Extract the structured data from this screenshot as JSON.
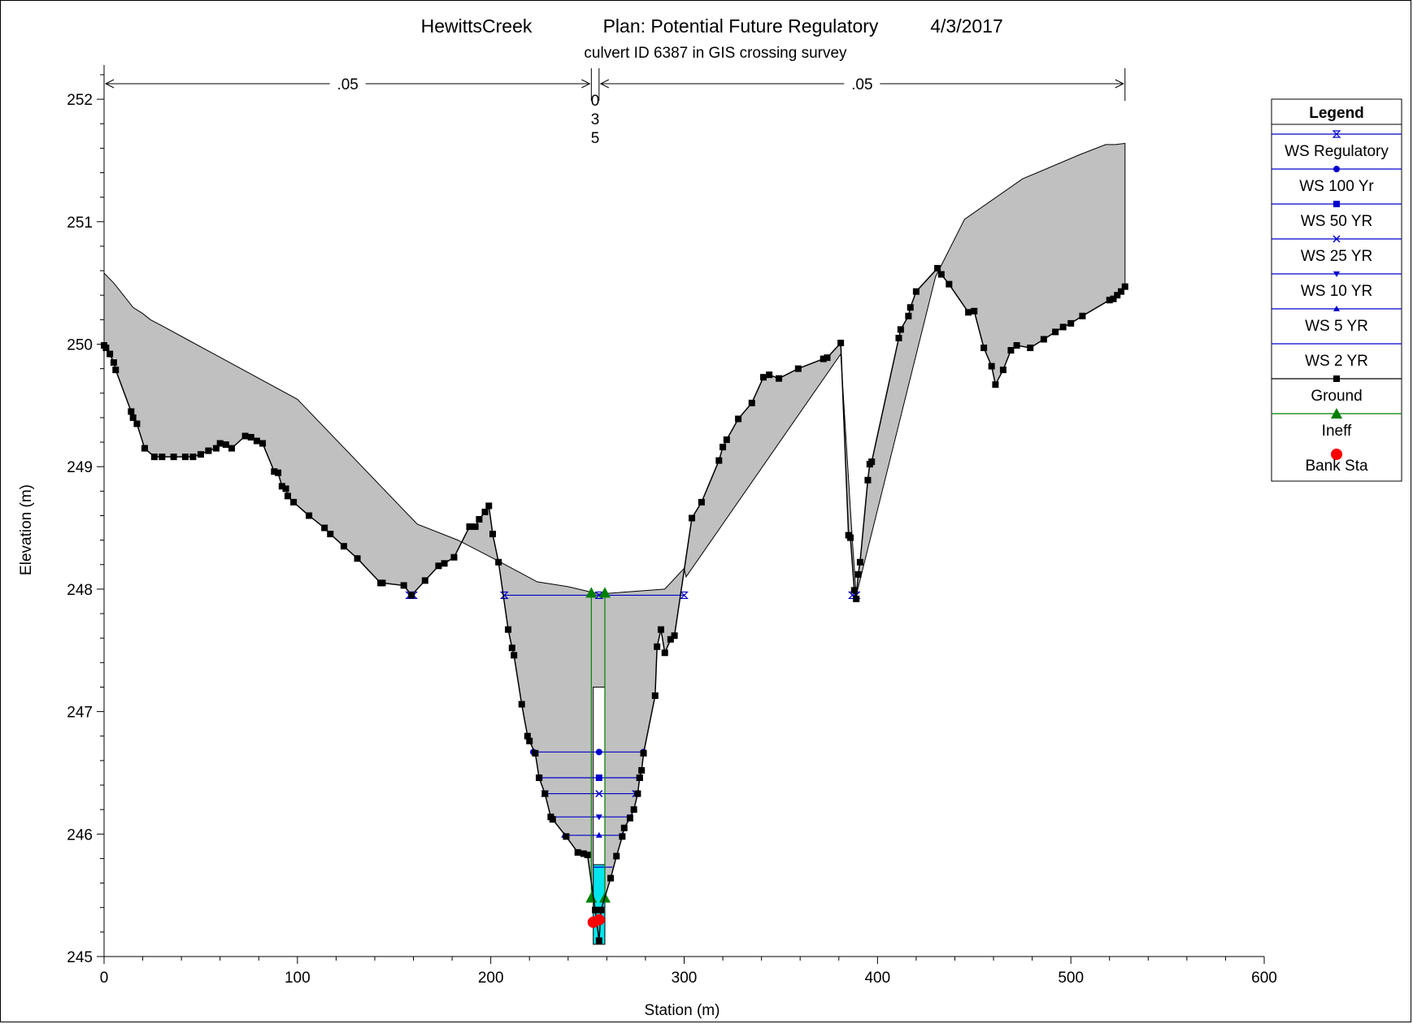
{
  "chart_data": {
    "type": "line",
    "title": {
      "project": "HewittsCreek",
      "plan": "Plan: Potential Future Regulatory",
      "date": "4/3/2017"
    },
    "subtitle": "culvert ID 6387 in GIS crossing survey",
    "xlabel": "Station (m)",
    "ylabel": "Elevation (m)",
    "xlim": [
      0,
      600
    ],
    "ylim": [
      245,
      252.3
    ],
    "xticks": [
      "0",
      "100",
      "200",
      "300",
      "400",
      "500",
      "600"
    ],
    "yticks": [
      "245",
      "246",
      "247",
      "248",
      "249",
      "250",
      "251",
      "252"
    ],
    "mannings": [
      {
        "value": ".05",
        "from": 0,
        "to": 252
      },
      {
        "value": "0\n3\n5",
        "from": 252,
        "to": 256
      },
      {
        "value": ".05",
        "from": 256,
        "to": 528
      }
    ],
    "legend_title": "Legend",
    "legend_position": "right",
    "series": [
      {
        "name": "WS Regulatory",
        "marker": "hourglass",
        "color": "#0000cc",
        "segments": [
          [
            [
              207,
              247.95
            ],
            [
              300,
              247.95
            ]
          ],
          [
            [
              158,
              247.95
            ],
            [
              160,
              247.95
            ]
          ],
          [
            [
              387,
              247.95
            ],
            [
              389,
              247.95
            ]
          ]
        ]
      },
      {
        "name": "WS 100 Yr",
        "marker": "circle",
        "color": "#0000cc",
        "segments": [
          [
            [
              222,
              246.67
            ],
            [
              279,
              246.67
            ]
          ]
        ]
      },
      {
        "name": "WS 50 YR",
        "marker": "square",
        "color": "#0000cc",
        "segments": [
          [
            [
              225,
              246.46
            ],
            [
              277,
              246.46
            ]
          ]
        ]
      },
      {
        "name": "WS 25 YR",
        "marker": "x",
        "color": "#0000cc",
        "segments": [
          [
            [
              228,
              246.33
            ],
            [
              275,
              246.33
            ]
          ]
        ]
      },
      {
        "name": "WS 10 YR",
        "marker": "triangle-down",
        "color": "#0000cc",
        "segments": [
          [
            [
              231,
              246.14
            ],
            [
              272,
              246.14
            ]
          ]
        ]
      },
      {
        "name": "WS 5 YR",
        "marker": "triangle-up",
        "color": "#0000cc",
        "segments": [
          [
            [
              238,
              245.99
            ],
            [
              268,
              245.99
            ]
          ]
        ]
      },
      {
        "name": "WS 2 YR",
        "marker": "none",
        "color": "#0000cc",
        "segments": [
          [
            [
              253,
              245.73
            ],
            [
              263,
              245.73
            ]
          ]
        ]
      },
      {
        "name": "Ground",
        "marker": "square",
        "color": "#000000",
        "points": [
          [
            0,
            249.99
          ],
          [
            1,
            249.97
          ],
          [
            3,
            249.92
          ],
          [
            5,
            249.85
          ],
          [
            6,
            249.79
          ],
          [
            14,
            249.45
          ],
          [
            15,
            249.4
          ],
          [
            17,
            249.35
          ],
          [
            21,
            249.15
          ],
          [
            26,
            249.08
          ],
          [
            30,
            249.08
          ],
          [
            36,
            249.08
          ],
          [
            42,
            249.08
          ],
          [
            46,
            249.08
          ],
          [
            50,
            249.1
          ],
          [
            54,
            249.13
          ],
          [
            58,
            249.15
          ],
          [
            60,
            249.19
          ],
          [
            63,
            249.18
          ],
          [
            66,
            249.15
          ],
          [
            73,
            249.25
          ],
          [
            76,
            249.24
          ],
          [
            79,
            249.21
          ],
          [
            82,
            249.19
          ],
          [
            88,
            248.96
          ],
          [
            90,
            248.95
          ],
          [
            92,
            248.84
          ],
          [
            94,
            248.82
          ],
          [
            95,
            248.76
          ],
          [
            98,
            248.71
          ],
          [
            106,
            248.6
          ],
          [
            114,
            248.5
          ],
          [
            117,
            248.45
          ],
          [
            124,
            248.35
          ],
          [
            131,
            248.25
          ],
          [
            143,
            248.05
          ],
          [
            144,
            248.05
          ],
          [
            155,
            248.03
          ],
          [
            159,
            247.95
          ],
          [
            166,
            248.07
          ],
          [
            173,
            248.19
          ],
          [
            176,
            248.21
          ],
          [
            181,
            248.26
          ],
          [
            189,
            248.51
          ],
          [
            192,
            248.51
          ],
          [
            194,
            248.57
          ],
          [
            197,
            248.63
          ],
          [
            199,
            248.68
          ],
          [
            201,
            248.45
          ],
          [
            204,
            248.22
          ],
          [
            209,
            247.67
          ],
          [
            211,
            247.52
          ],
          [
            212,
            247.46
          ],
          [
            216,
            247.06
          ],
          [
            219,
            246.8
          ],
          [
            220,
            246.76
          ],
          [
            223,
            246.66
          ],
          [
            225,
            246.46
          ],
          [
            228,
            246.33
          ],
          [
            231,
            246.14
          ],
          [
            232,
            246.12
          ],
          [
            239,
            245.98
          ],
          [
            245,
            245.85
          ],
          [
            248,
            245.84
          ],
          [
            250,
            245.83
          ],
          [
            254,
            245.38
          ],
          [
            256,
            245.13
          ],
          [
            257,
            245.38
          ],
          [
            262,
            245.64
          ],
          [
            265,
            245.82
          ],
          [
            268,
            245.98
          ],
          [
            269,
            246.05
          ],
          [
            272,
            246.13
          ],
          [
            274,
            246.2
          ],
          [
            276,
            246.33
          ],
          [
            277,
            246.46
          ],
          [
            278,
            246.52
          ],
          [
            279,
            246.66
          ],
          [
            285,
            247.13
          ],
          [
            286,
            247.53
          ],
          [
            288,
            247.67
          ],
          [
            290,
            247.48
          ],
          [
            293,
            247.59
          ],
          [
            295,
            247.62
          ],
          [
            304,
            248.58
          ],
          [
            309,
            248.71
          ],
          [
            318,
            249.05
          ],
          [
            320,
            249.16
          ],
          [
            322,
            249.22
          ],
          [
            328,
            249.39
          ],
          [
            335,
            249.52
          ],
          [
            341,
            249.73
          ],
          [
            344,
            249.75
          ],
          [
            349,
            249.72
          ],
          [
            359,
            249.8
          ],
          [
            372,
            249.88
          ],
          [
            374,
            249.89
          ],
          [
            381,
            250.01
          ],
          [
            385,
            248.44
          ],
          [
            386,
            248.42
          ],
          [
            388,
            247.99
          ],
          [
            389,
            247.92
          ],
          [
            390,
            248.12
          ],
          [
            391,
            248.22
          ],
          [
            395,
            248.89
          ],
          [
            396,
            249.02
          ],
          [
            397,
            249.04
          ],
          [
            411,
            250.05
          ],
          [
            412,
            250.12
          ],
          [
            416,
            250.23
          ],
          [
            417,
            250.3
          ],
          [
            420,
            250.43
          ],
          [
            431,
            250.62
          ],
          [
            433,
            250.57
          ],
          [
            437,
            250.49
          ],
          [
            447,
            250.26
          ],
          [
            450,
            250.27
          ],
          [
            455,
            249.97
          ],
          [
            459,
            249.82
          ],
          [
            461,
            249.67
          ],
          [
            465,
            249.79
          ],
          [
            469,
            249.95
          ],
          [
            472,
            249.99
          ],
          [
            479,
            249.97
          ],
          [
            486,
            250.04
          ],
          [
            492,
            250.1
          ],
          [
            496,
            250.14
          ],
          [
            500,
            250.17
          ],
          [
            506,
            250.23
          ],
          [
            520,
            250.36
          ],
          [
            522,
            250.37
          ],
          [
            524,
            250.4
          ],
          [
            526,
            250.43
          ],
          [
            528,
            250.47
          ]
        ]
      },
      {
        "name": "Ineff",
        "marker": "triangle-up-large",
        "color": "#008000",
        "points": [
          [
            252,
            247.97
          ],
          [
            259,
            247.97
          ],
          [
            252,
            245.48
          ],
          [
            259,
            245.48
          ]
        ]
      },
      {
        "name": "Bank Sta",
        "marker": "circle-large",
        "color": "#ff0000",
        "points": [
          [
            253,
            245.28
          ],
          [
            256,
            245.3
          ]
        ]
      }
    ],
    "gray_area_top": [
      [
        0,
        250.58
      ],
      [
        5,
        250.5
      ],
      [
        10,
        250.4
      ],
      [
        15,
        250.3
      ],
      [
        20,
        250.25
      ],
      [
        24,
        250.2
      ],
      [
        30,
        250.15
      ],
      [
        44,
        250.03
      ],
      [
        100,
        249.55
      ],
      [
        162,
        248.53
      ],
      [
        183,
        248.4
      ],
      [
        205,
        248.22
      ],
      [
        224,
        248.06
      ],
      [
        240,
        248.02
      ],
      [
        256,
        247.96
      ],
      [
        290,
        248.0
      ],
      [
        300,
        248.17
      ],
      [
        301,
        248.1
      ],
      [
        381,
        249.92
      ],
      [
        387,
        248.4
      ],
      [
        389,
        247.95
      ],
      [
        430,
        250.55
      ],
      [
        445,
        251.02
      ],
      [
        475,
        251.35
      ],
      [
        505,
        251.55
      ],
      [
        518,
        251.63
      ],
      [
        523,
        251.63
      ],
      [
        528,
        251.64
      ],
      [
        528,
        250.47
      ]
    ],
    "culvert": {
      "upper_opening": {
        "x": [
          253,
          259
        ],
        "y": [
          247.2,
          245.75
        ]
      },
      "culvert_barrel": {
        "x": [
          253,
          259
        ],
        "y": [
          245.75,
          245.1
        ]
      },
      "color": "#00e5ee"
    }
  }
}
